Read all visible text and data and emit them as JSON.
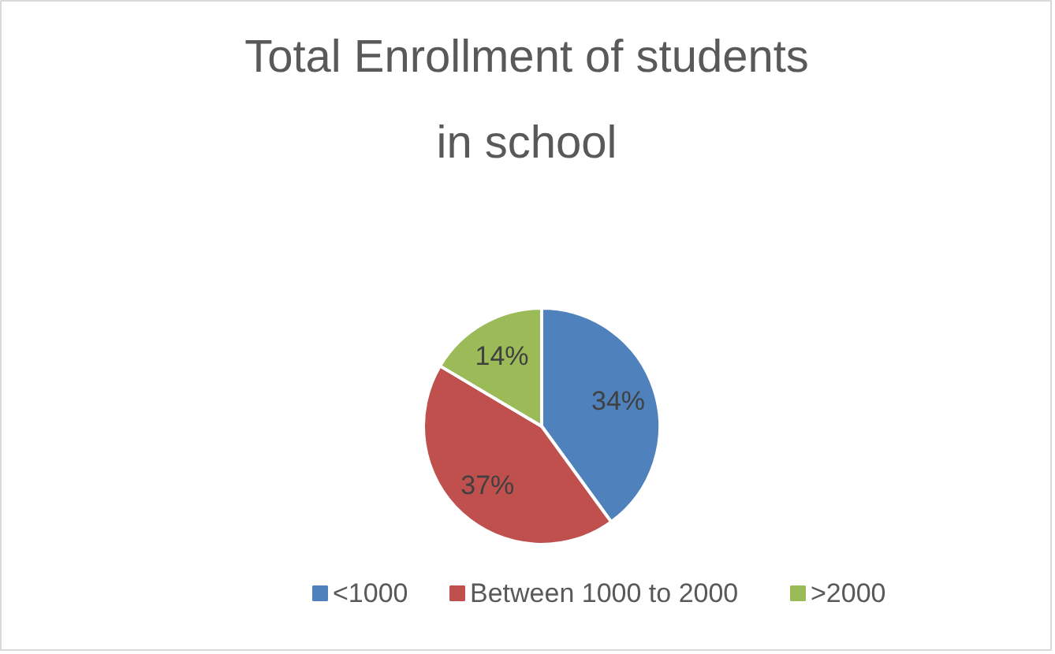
{
  "chart_data": {
    "type": "pie",
    "title": "Total Enrollment of students in school",
    "categories": [
      "<1000",
      "Between 1000 to 2000",
      ">2000"
    ],
    "values": [
      34,
      37,
      14
    ],
    "colors": [
      "#4f81bd",
      "#c0504d",
      "#9bbb59"
    ],
    "value_labels": [
      "34%",
      "37%",
      "14%"
    ],
    "legend": "bottom"
  }
}
